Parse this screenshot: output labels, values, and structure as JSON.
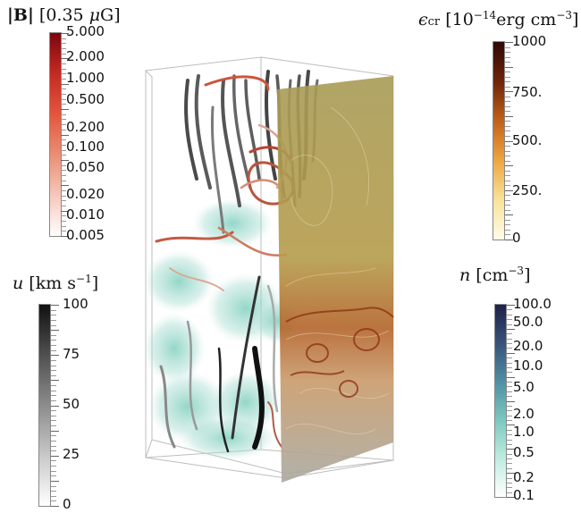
{
  "colorbars": {
    "b": {
      "title_main": "|B| [0.35 μG]",
      "labels": [
        "5.000",
        "2.000",
        "1.000",
        "0.500",
        "0.200",
        "0.100",
        "0.050",
        "0.020",
        "0.010",
        "0.005"
      ],
      "colors": [
        "#ffffff",
        "#f6c7bb",
        "#eb8e74",
        "#e4553d",
        "#c62a21",
        "#7c0510"
      ]
    },
    "ecr": {
      "title_main": "ϵcr [10−14erg cm−3]",
      "labels": [
        "1000",
        "750.",
        "500.",
        "250.",
        "0"
      ],
      "colors": [
        "#fffbe8",
        "#f7e39a",
        "#eea640",
        "#c2611a",
        "#6e2409",
        "#2e0806"
      ]
    },
    "u": {
      "title_main": "u [km s−1]",
      "labels": [
        "100",
        "75",
        "50",
        "25",
        "0"
      ],
      "colors": [
        "#ffffff",
        "#c8c8c8",
        "#8c8c8c",
        "#505050",
        "#111111"
      ]
    },
    "n": {
      "title_main": "n [cm−3]",
      "labels": [
        "100.0",
        "50.0",
        "20.0",
        "10.0",
        "5.0",
        "2.0",
        "1.0",
        "0.5",
        "0.2",
        "0.1"
      ],
      "colors": [
        "#ffffff",
        "#bfece1",
        "#7cc8bf",
        "#4f8fa3",
        "#37527a",
        "#1d2248"
      ]
    }
  },
  "scene": {
    "box_color": "#b8b8b8",
    "plane_color": "#b39a4c",
    "plane_hot_color": "#a9471a"
  }
}
